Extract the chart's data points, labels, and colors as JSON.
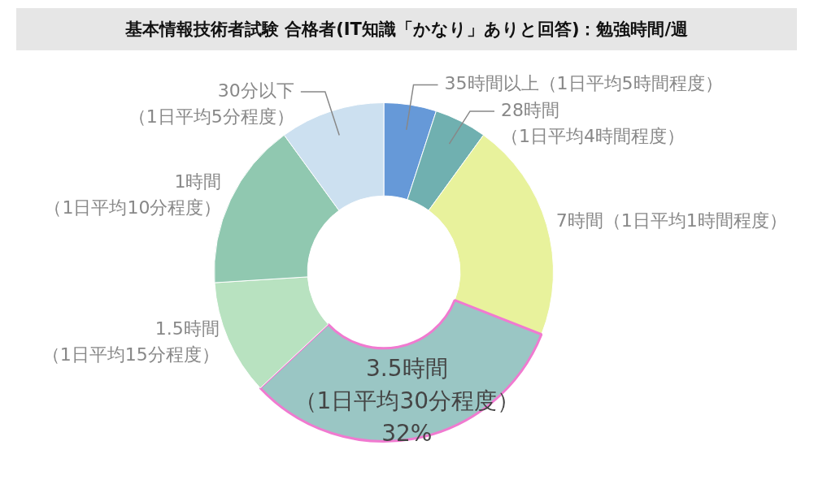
{
  "chart_data": {
    "type": "donut",
    "title": "基本情報技術者試験 合格者(IT知識「かなり」ありと回答)：勉強時間/週",
    "categories": [
      "35時間以上（1日平均5時間程度）",
      "28時間（1日平均4時間程度）",
      "7時間（1日平均1時間程度）",
      "3.5時間（1日平均30分程度）",
      "1.5時間（1日平均15分程度）",
      "1時間（1日平均10分程度）",
      "30分以下（1日平均5分程度）"
    ],
    "values": [
      5,
      5,
      21,
      32,
      11,
      16,
      10
    ],
    "colors": [
      "#6699d8",
      "#70b0b0",
      "#e8f29c",
      "#9ac6c4",
      "#b8e2c0",
      "#90c8b0",
      "#cce0f0"
    ],
    "value_labels": [
      null,
      null,
      null,
      "32%",
      null,
      null,
      null
    ],
    "legend": false
  }
}
